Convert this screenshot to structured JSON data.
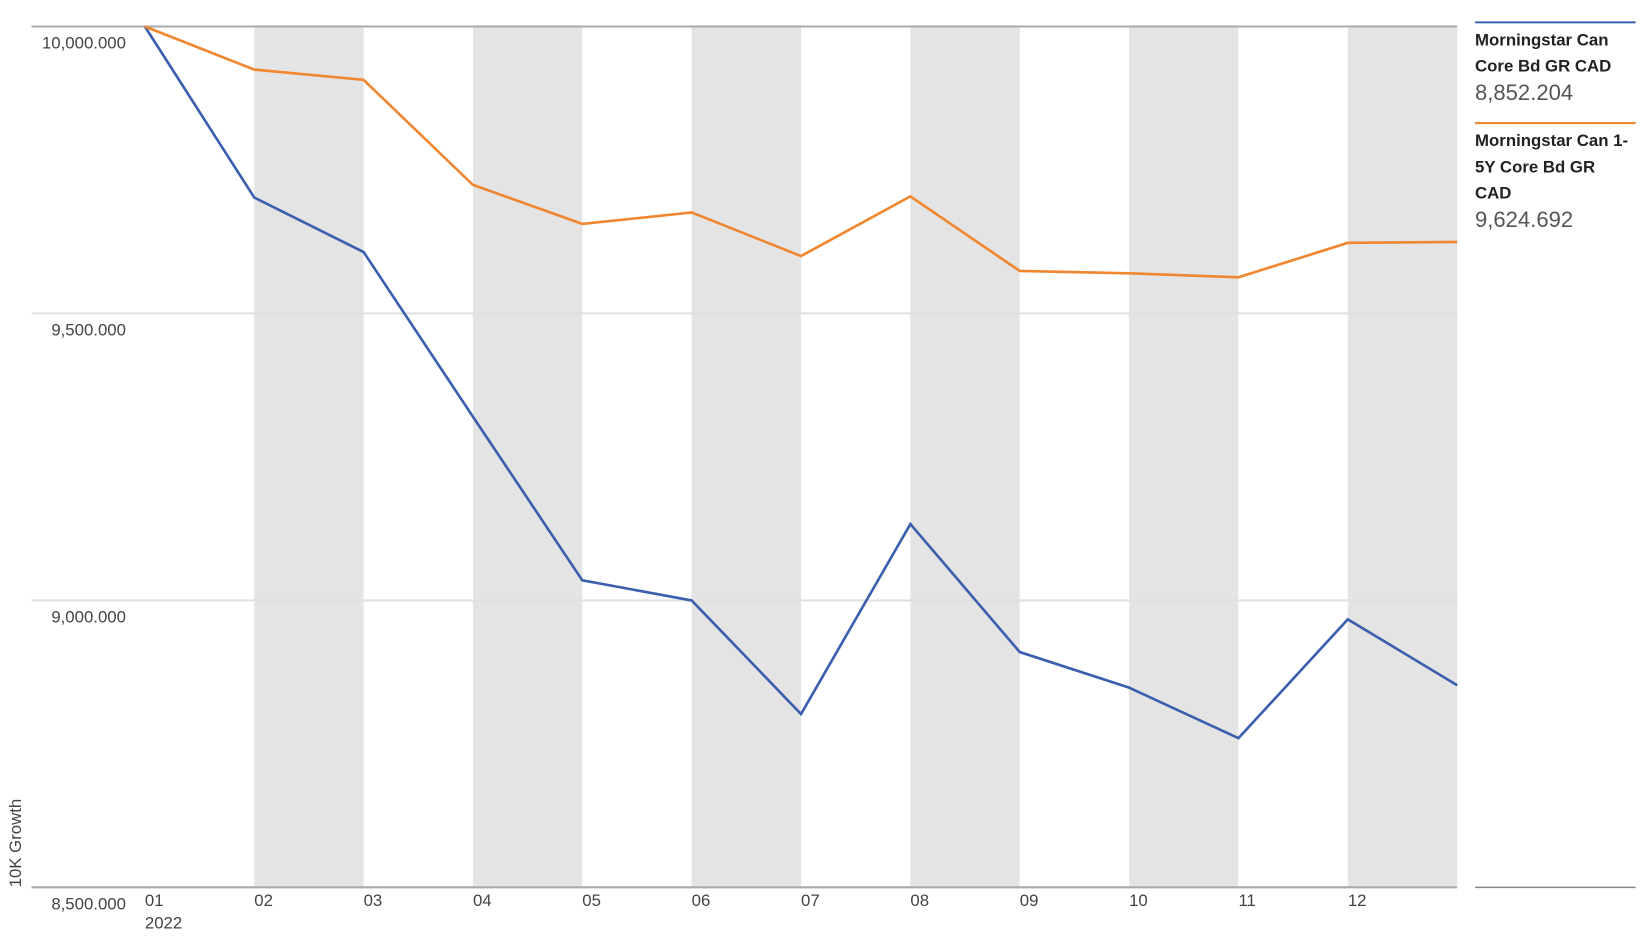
{
  "chart_data": {
    "type": "line",
    "y_axis_label": "10K Growth",
    "x_sublabel": "2022",
    "categories": [
      "01",
      "02",
      "03",
      "04",
      "05",
      "06",
      "07",
      "08",
      "09",
      "10",
      "11",
      "12",
      null
    ],
    "series": [
      {
        "name": "Morningstar Can Core Bd GR CAD",
        "color": "#3a5fae",
        "values": [
          10000,
          9702,
          9607,
          9320,
          9035,
          9000,
          8802,
          9133,
          8910,
          8848,
          8760,
          8967,
          8852.204
        ],
        "value_labels": [
          null,
          null,
          null,
          null,
          null,
          null,
          null,
          null,
          null,
          null,
          null,
          null,
          "8,852.204"
        ]
      },
      {
        "name": "Morningstar Can 1-5Y Core Bd GR CAD",
        "color": "#f0862f",
        "values": [
          10000,
          9925,
          9907,
          9724,
          9656,
          9676,
          9600,
          9704,
          9574,
          9570,
          9563,
          9623,
          9624.692
        ],
        "value_labels": [
          null,
          null,
          null,
          null,
          null,
          null,
          null,
          null,
          null,
          null,
          null,
          null,
          "9,624.692"
        ]
      }
    ],
    "ylim": [
      8500,
      10000
    ],
    "yticks": [
      {
        "value": 8500,
        "label": "8,500.000"
      },
      {
        "value": 9000,
        "label": "9,000.000"
      },
      {
        "value": 9500,
        "label": "9,500.000"
      },
      {
        "value": 10000,
        "label": "10,000.000"
      }
    ],
    "grid": true
  }
}
